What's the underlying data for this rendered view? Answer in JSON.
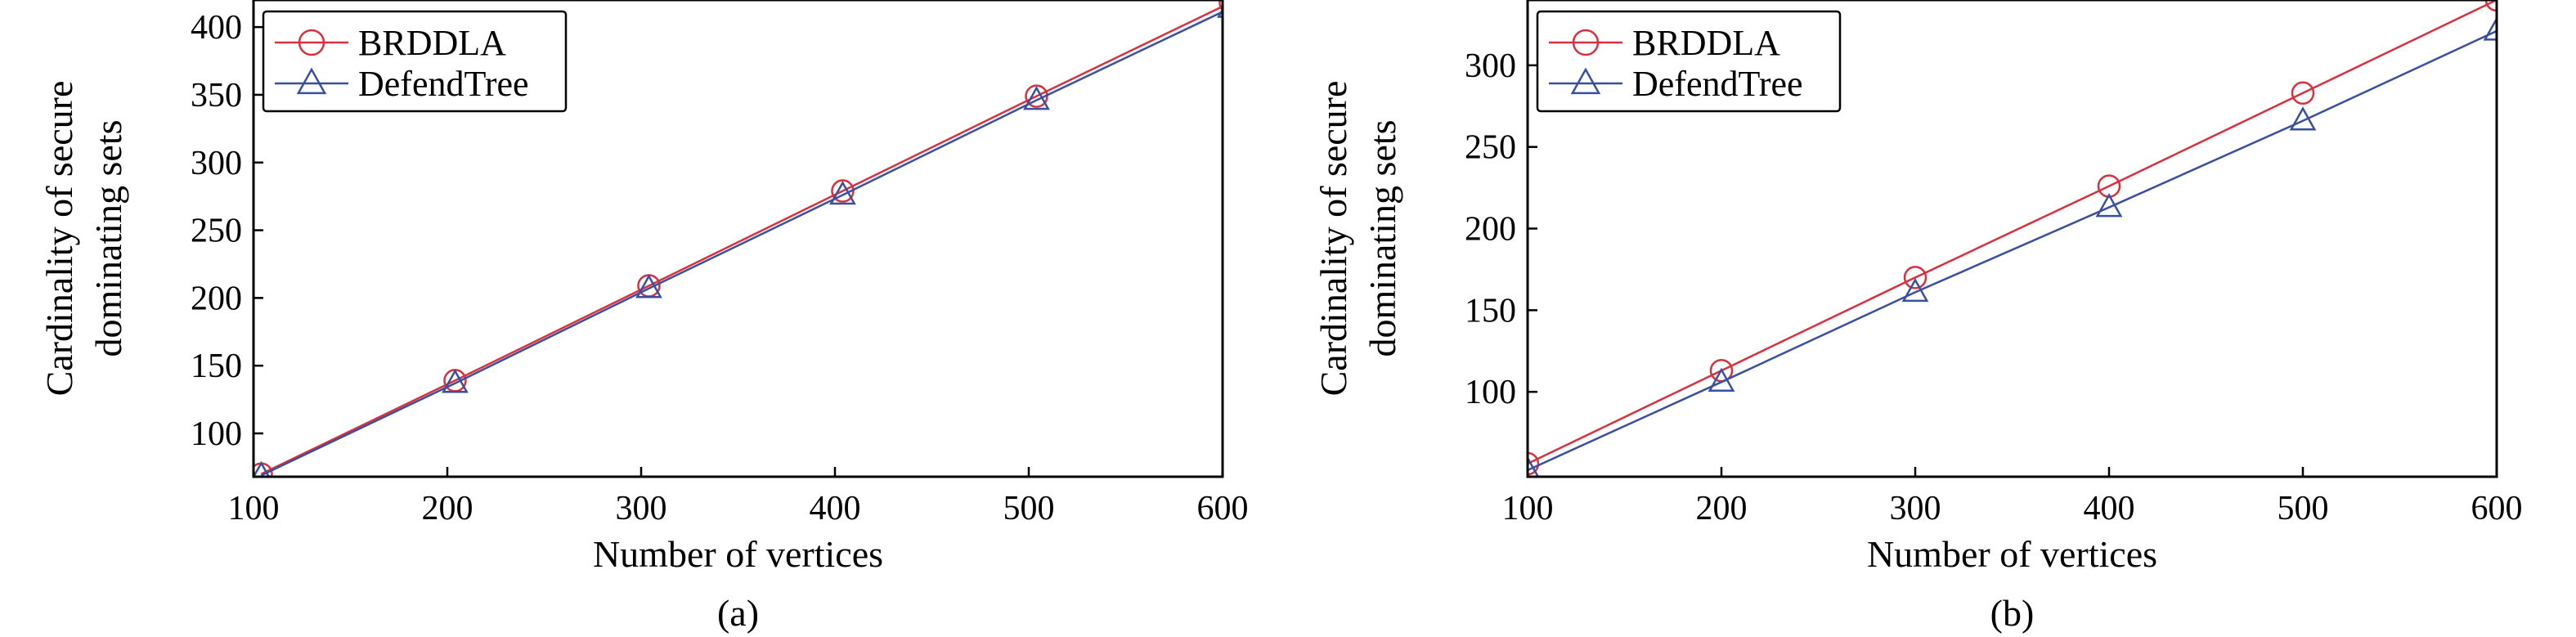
{
  "chart_data": [
    {
      "type": "line",
      "caption": "(a)",
      "xlabel": "Number of vertices",
      "ylabel": [
        "Cardinality of secure",
        "dominating sets"
      ],
      "xlim": [
        100,
        600
      ],
      "ylim": [
        68,
        420
      ],
      "xticks": [
        100,
        200,
        300,
        400,
        500,
        600
      ],
      "yticks": [
        100,
        150,
        200,
        250,
        300,
        350,
        400
      ],
      "legend": "top-left",
      "grid": false,
      "series": [
        {
          "name": "BRDDLA",
          "color": "#d9303e",
          "marker": "circle",
          "x": [
            104,
            204,
            304,
            404,
            504,
            604
          ],
          "y": [
            70,
            139,
            209,
            279,
            349,
            418
          ]
        },
        {
          "name": "DefendTree",
          "color": "#3a4fa0",
          "marker": "triangle",
          "x": [
            104,
            204,
            304,
            404,
            504,
            604
          ],
          "y": [
            69,
            137,
            207,
            276,
            346,
            414
          ]
        }
      ]
    },
    {
      "type": "line",
      "caption": "(b)",
      "xlabel": "Number of vertices",
      "ylabel": [
        "Cardinality of secure",
        "dominating sets"
      ],
      "xlim": [
        100,
        600
      ],
      "ylim": [
        48,
        340
      ],
      "xticks": [
        100,
        200,
        300,
        400,
        500,
        600
      ],
      "yticks": [
        100,
        150,
        200,
        250,
        300
      ],
      "legend": "top-left",
      "grid": false,
      "series": [
        {
          "name": "BRDDLA",
          "color": "#d9303e",
          "marker": "circle",
          "x": [
            100,
            200,
            300,
            400,
            500,
            600
          ],
          "y": [
            56,
            113,
            170,
            226,
            283,
            340
          ]
        },
        {
          "name": "DefendTree",
          "color": "#3a4fa0",
          "marker": "triangle",
          "x": [
            100,
            200,
            300,
            400,
            500,
            600
          ],
          "y": [
            52,
            106,
            161,
            213,
            266,
            321
          ]
        }
      ]
    }
  ]
}
